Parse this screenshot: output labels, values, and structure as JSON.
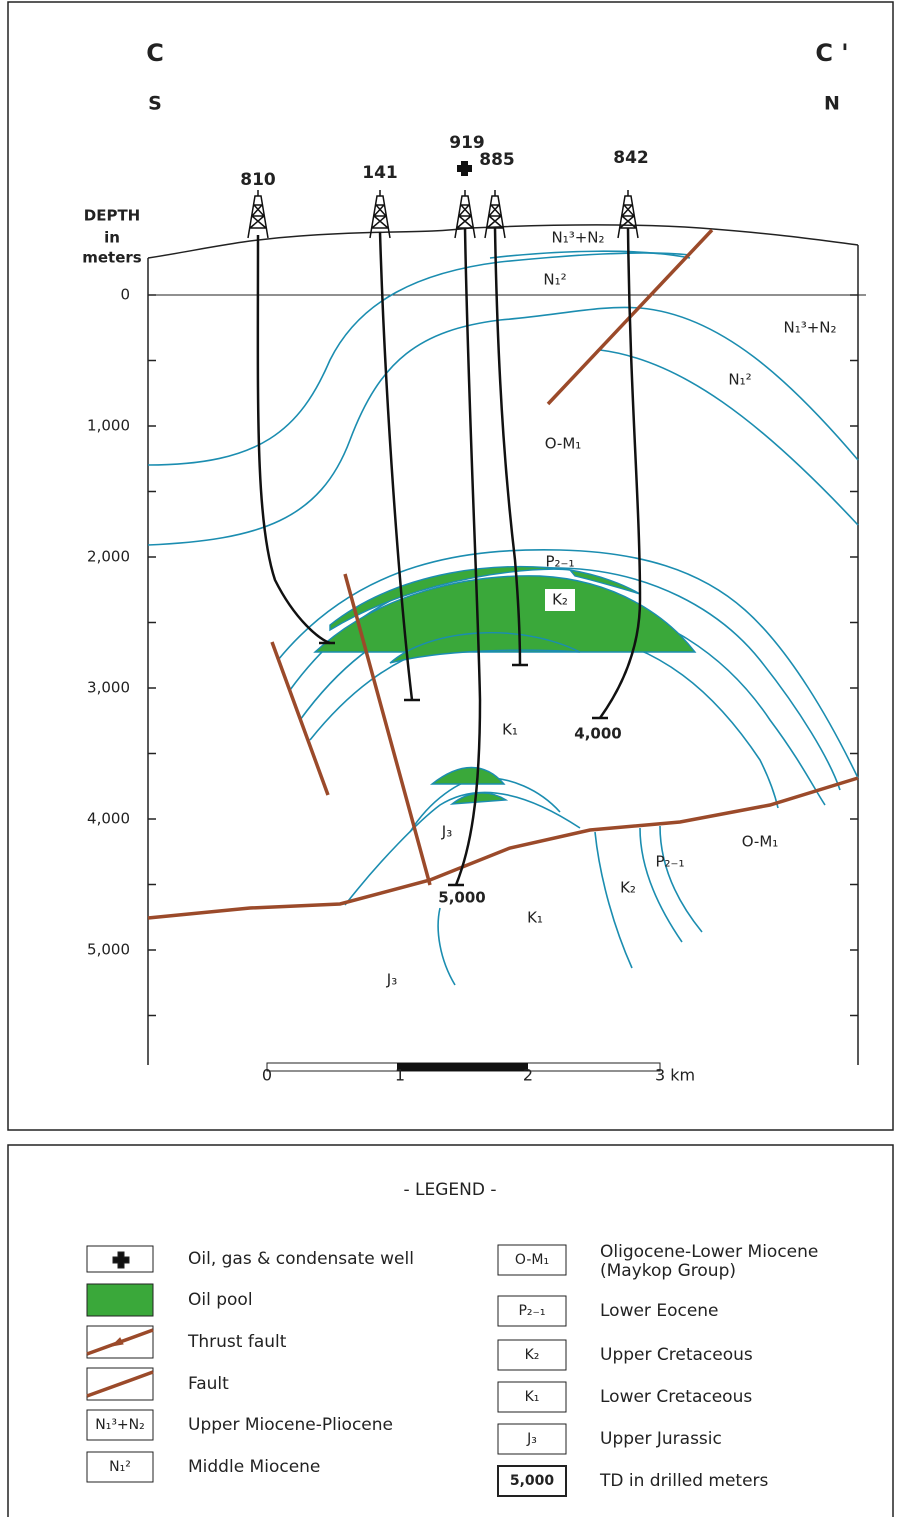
{
  "section": {
    "left": "C",
    "right": "C '",
    "left_direction": "S",
    "right_direction": "N"
  },
  "depth_axis": {
    "title": [
      "DEPTH",
      "in",
      "meters"
    ],
    "labels": [
      "0",
      "1,000",
      "2,000",
      "3,000",
      "4,000",
      "5,000"
    ]
  },
  "wells": [
    "810",
    "141",
    "919",
    "885",
    "842"
  ],
  "total_depths": [
    "4,000",
    "5,000"
  ],
  "formation_labels": [
    "N₁³+N₂",
    "N₁²",
    "N₁³+N₂",
    "N₁²",
    "O-M₁",
    "P₂₋₁",
    "K₂",
    "K₁",
    "J₃",
    "O-M₁",
    "P₂₋₁",
    "K₂",
    "K₁",
    "J₃"
  ],
  "scale_bar": [
    "0",
    "1",
    "2",
    "3 km"
  ],
  "legend": {
    "title": "- LEGEND -",
    "left_items": [
      {
        "label": "Oil, gas & condensate well"
      },
      {
        "label": "Oil pool"
      },
      {
        "label": "Thrust fault"
      },
      {
        "label": "Fault"
      },
      {
        "symbol": "N₁³+N₂",
        "label": "Upper Miocene-Pliocene"
      },
      {
        "symbol": "N₁²",
        "label": "Middle Miocene"
      }
    ],
    "right_items": [
      {
        "symbol": "O-M₁",
        "lines": [
          "Oligocene-Lower Miocene",
          "(Maykop Group)"
        ]
      },
      {
        "symbol": "P₂₋₁",
        "lines": [
          "Lower Eocene"
        ]
      },
      {
        "symbol": "K₂",
        "lines": [
          "Upper Cretaceous"
        ]
      },
      {
        "symbol": "K₁",
        "lines": [
          "Lower Cretaceous"
        ]
      },
      {
        "symbol": "J₃",
        "lines": [
          "Upper Jurassic"
        ]
      },
      {
        "symbol": "5,000",
        "lines": [
          "TD in drilled meters"
        ]
      }
    ]
  }
}
